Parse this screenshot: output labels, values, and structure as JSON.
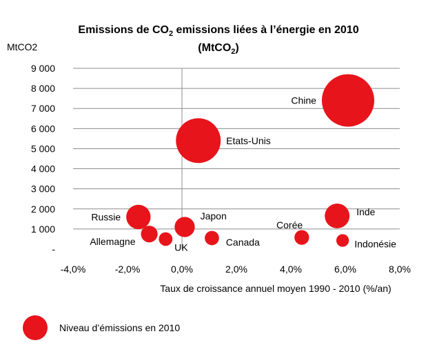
{
  "chart_data": {
    "type": "scatter",
    "title_line1": "Emissions de CO",
    "title_sub": "2",
    "title_line1_rest": " emissions liées à l’énergie en  2010",
    "title_line2_open": "(MtCO",
    "title_line2_sub": "2",
    "title_line2_close": ")",
    "ylabel": "MtCO2",
    "xlabel": "Taux de croissance annuel moyen 1990 - 2010 (%/an)",
    "x_ticks": [
      "-4,0%",
      "-2,0%",
      "0,0%",
      "2,0%",
      "4,0%",
      "6,0%",
      "8,0%"
    ],
    "y_ticks": [
      "-",
      "1 000",
      "2 000",
      "3 000",
      "4 000",
      "5 000",
      "6 000",
      "7 000",
      "8 000",
      "9 000"
    ],
    "xlim": [
      -4,
      8
    ],
    "ylim": [
      0,
      9000
    ],
    "grid": "horizontal",
    "bubble_color": "#e8141b",
    "points": [
      {
        "label": "Chine",
        "x": 6.1,
        "y": 7400,
        "size": 7400
      },
      {
        "label": "Etats-Unis",
        "x": 0.6,
        "y": 5400,
        "size": 5400
      },
      {
        "label": "Inde",
        "x": 5.7,
        "y": 1650,
        "size": 1650
      },
      {
        "label": "Russie",
        "x": -1.6,
        "y": 1600,
        "size": 1600
      },
      {
        "label": "Japon",
        "x": 0.1,
        "y": 1100,
        "size": 1100
      },
      {
        "label": "Allemagne",
        "x": -1.2,
        "y": 750,
        "size": 750
      },
      {
        "label": "UK",
        "x": -0.6,
        "y": 500,
        "size": 500
      },
      {
        "label": "Canada",
        "x": 1.1,
        "y": 550,
        "size": 550
      },
      {
        "label": "Corée",
        "x": 4.4,
        "y": 580,
        "size": 580
      },
      {
        "label": "Indonésie",
        "x": 5.9,
        "y": 430,
        "size": 430
      }
    ],
    "legend_label": "Niveau d’émissions en 2010"
  }
}
